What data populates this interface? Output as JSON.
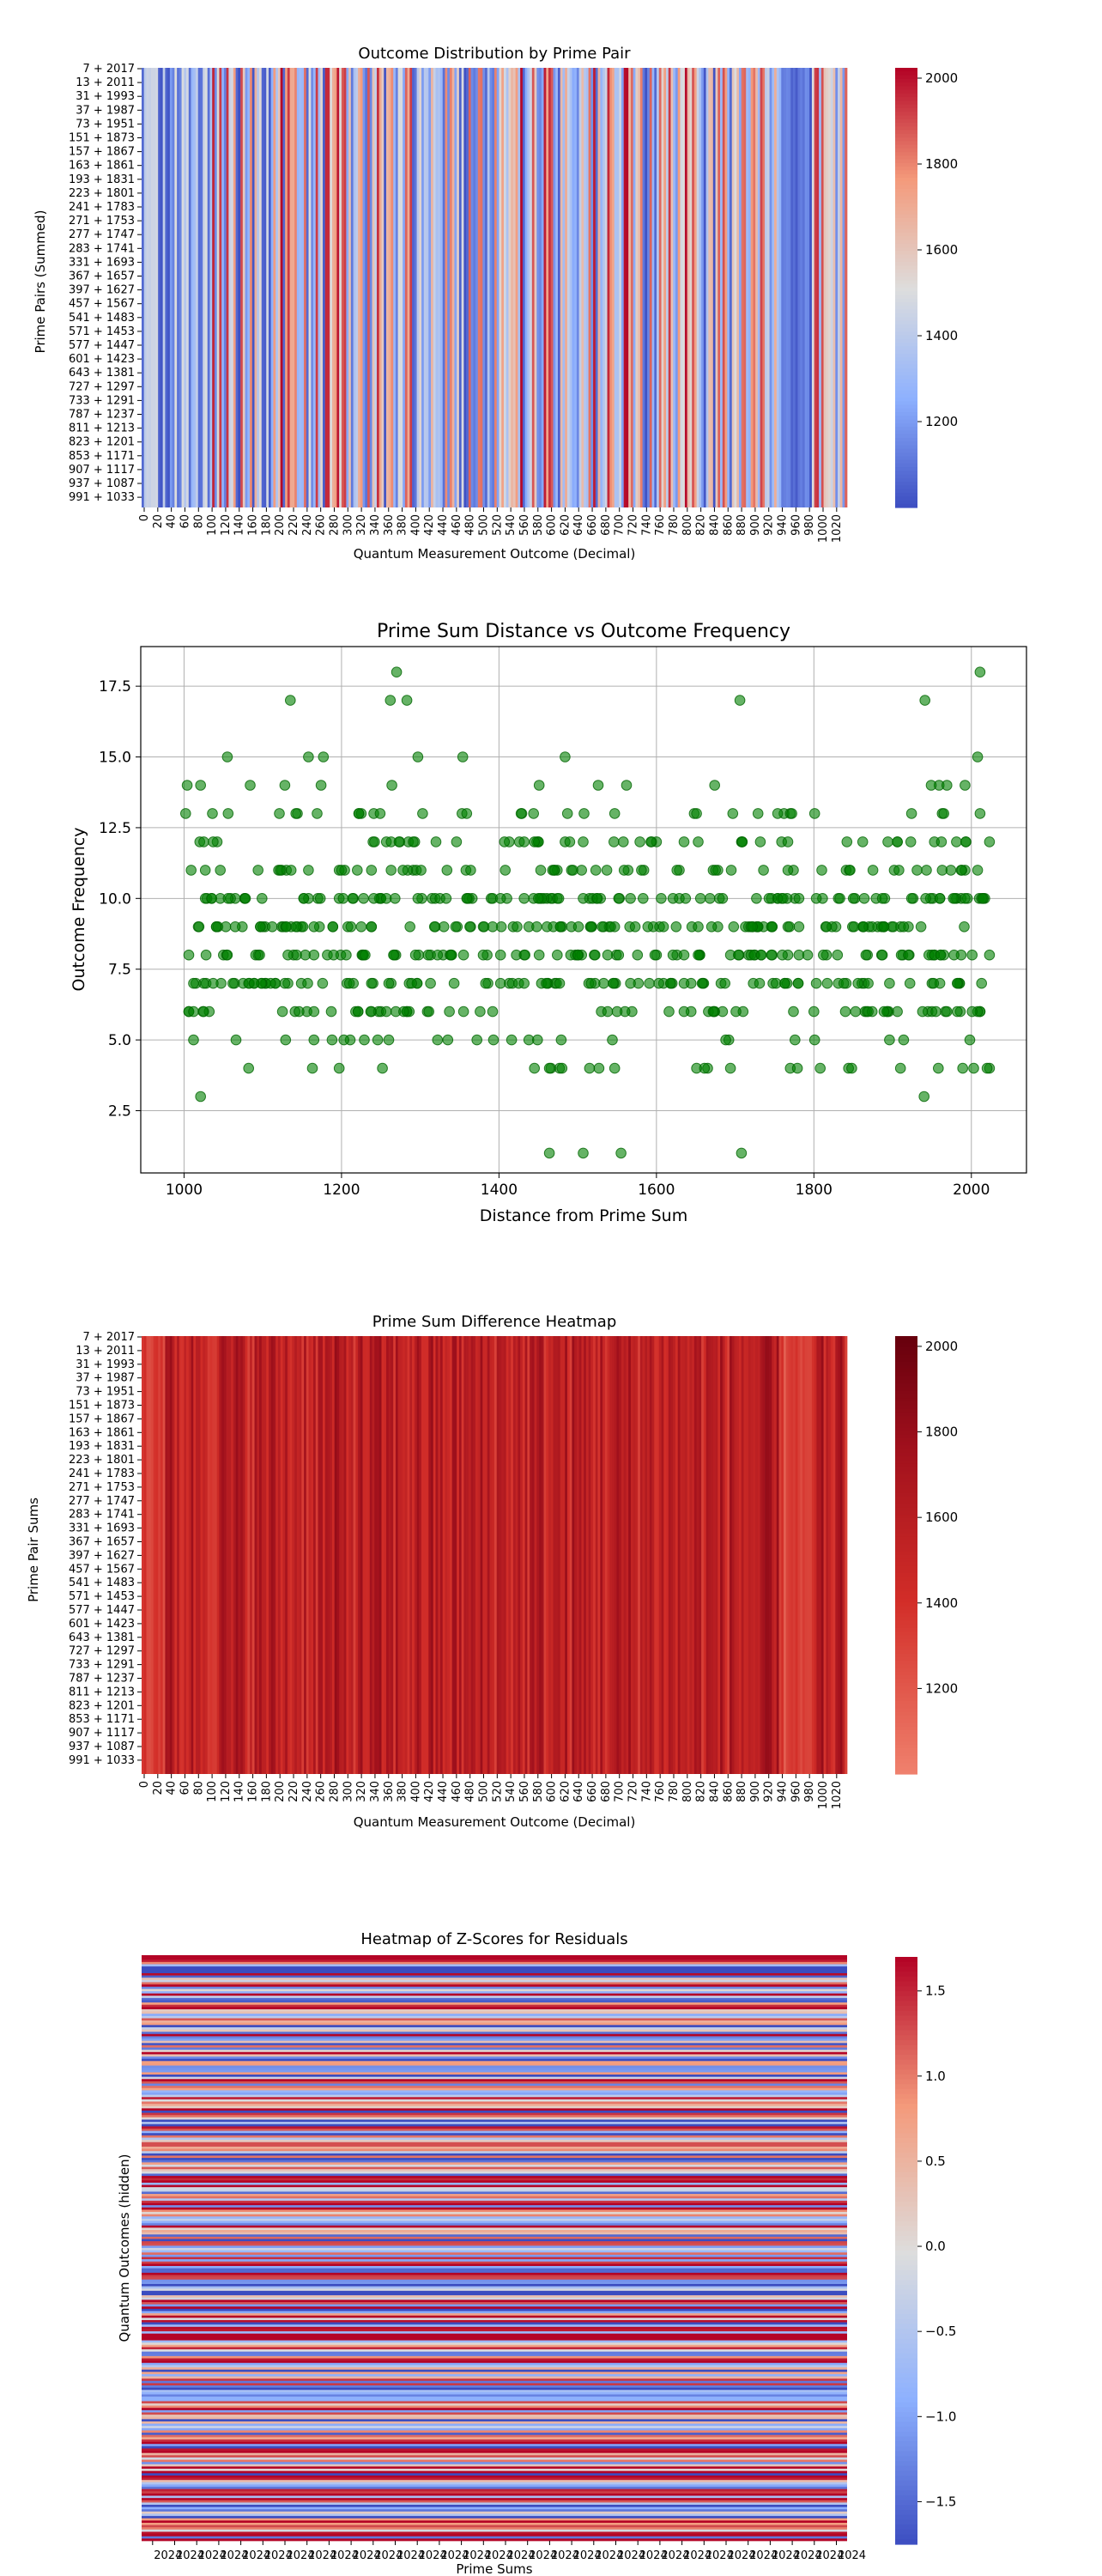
{
  "chart_data": [
    {
      "type": "heatmap",
      "title": "Outcome Distribution by Prime Pair",
      "xlabel": "Quantum Measurement Outcome (Decimal)",
      "ylabel": "Prime Pairs (Summed)",
      "x_tick_labels": [
        "0",
        "20",
        "40",
        "60",
        "80",
        "100",
        "120",
        "140",
        "160",
        "180",
        "200",
        "220",
        "240",
        "260",
        "280",
        "300",
        "320",
        "340",
        "360",
        "380",
        "400",
        "420",
        "440",
        "460",
        "480",
        "500",
        "520",
        "540",
        "560",
        "580",
        "600",
        "620",
        "640",
        "660",
        "680",
        "700",
        "720",
        "740",
        "760",
        "780",
        "800",
        "820",
        "840",
        "860",
        "880",
        "900",
        "920",
        "940",
        "960",
        "980",
        "1000",
        "1020"
      ],
      "y_tick_labels": [
        "7 + 2017",
        "13 + 2011",
        "31 + 1993",
        "37 + 1987",
        "73 + 1951",
        "151 + 1873",
        "157 + 1867",
        "163 + 1861",
        "193 + 1831",
        "223 + 1801",
        "241 + 1783",
        "271 + 1753",
        "277 + 1747",
        "283 + 1741",
        "331 + 1693",
        "367 + 1657",
        "397 + 1627",
        "457 + 1567",
        "541 + 1483",
        "571 + 1453",
        "577 + 1447",
        "601 + 1423",
        "643 + 1381",
        "727 + 1297",
        "733 + 1291",
        "787 + 1237",
        "811 + 1213",
        "823 + 1201",
        "853 + 1171",
        "907 + 1117",
        "937 + 1087",
        "991 + 1033"
      ],
      "colorbar": {
        "colormap": "coolwarm",
        "range": [
          1000,
          2024
        ],
        "ticks": [
          1200,
          1400,
          1600,
          1800,
          2000
        ]
      },
      "x_range": [
        0,
        1023
      ]
    },
    {
      "type": "scatter",
      "title": "Prime Sum Distance vs Outcome Frequency",
      "xlabel": "Distance from Prime Sum",
      "ylabel": "Outcome Frequency",
      "xlim": [
        945,
        2070
      ],
      "ylim": [
        0.3,
        18.9
      ],
      "x_ticks": [
        1000,
        1200,
        1400,
        1600,
        1800,
        2000
      ],
      "y_ticks": [
        2.5,
        5.0,
        7.5,
        10.0,
        12.5,
        15.0,
        17.5
      ],
      "grid": true,
      "marker_color": "#008000",
      "x_range_of_points": [
        1001,
        2024
      ],
      "notable_points": [
        [
          1270,
          18
        ],
        [
          2011,
          18
        ],
        [
          1135,
          17
        ],
        [
          1262,
          17
        ],
        [
          1283,
          17
        ],
        [
          1706,
          17
        ],
        [
          1941,
          17
        ],
        [
          1555,
          1
        ],
        [
          1507,
          1
        ],
        [
          1708,
          1
        ],
        [
          1464,
          1
        ]
      ]
    },
    {
      "type": "heatmap",
      "title": "Prime Sum Difference Heatmap",
      "xlabel": "Quantum Measurement Outcome (Decimal)",
      "ylabel": "Prime Pair Sums",
      "x_tick_labels": [
        "0",
        "20",
        "40",
        "60",
        "80",
        "100",
        "120",
        "140",
        "160",
        "180",
        "200",
        "220",
        "240",
        "260",
        "280",
        "300",
        "320",
        "340",
        "360",
        "380",
        "400",
        "420",
        "440",
        "460",
        "480",
        "500",
        "520",
        "540",
        "560",
        "580",
        "600",
        "620",
        "640",
        "660",
        "680",
        "700",
        "720",
        "740",
        "760",
        "780",
        "800",
        "820",
        "840",
        "860",
        "880",
        "900",
        "920",
        "940",
        "960",
        "980",
        "1000",
        "1020"
      ],
      "y_tick_labels": [
        "7 + 2017",
        "13 + 2011",
        "31 + 1993",
        "37 + 1987",
        "73 + 1951",
        "151 + 1873",
        "157 + 1867",
        "163 + 1861",
        "193 + 1831",
        "223 + 1801",
        "241 + 1783",
        "271 + 1753",
        "277 + 1747",
        "283 + 1741",
        "331 + 1693",
        "367 + 1657",
        "397 + 1627",
        "457 + 1567",
        "541 + 1483",
        "571 + 1453",
        "577 + 1447",
        "601 + 1423",
        "643 + 1381",
        "727 + 1297",
        "733 + 1291",
        "787 + 1237",
        "811 + 1213",
        "823 + 1201",
        "853 + 1171",
        "907 + 1117",
        "937 + 1087",
        "991 + 1033"
      ],
      "colorbar": {
        "colormap": "Reds",
        "range": [
          1000,
          2024
        ],
        "ticks": [
          1200,
          1400,
          1600,
          1800,
          2000
        ]
      },
      "x_range": [
        0,
        1023
      ]
    },
    {
      "type": "heatmap",
      "title": "Heatmap of Z-Scores for Residuals",
      "xlabel": "Prime Sums",
      "ylabel": "Quantum Outcomes (hidden)",
      "x_tick_labels": [
        "2024",
        "2024",
        "2024",
        "2024",
        "2024",
        "2024",
        "2024",
        "2024",
        "2024",
        "2024",
        "2024",
        "2024",
        "2024",
        "2024",
        "2024",
        "2024",
        "2024",
        "2024",
        "2024",
        "2024",
        "2024",
        "2024",
        "2024",
        "2024",
        "2024",
        "2024",
        "2024",
        "2024",
        "2024",
        "2024",
        "2024",
        "2024"
      ],
      "colorbar": {
        "colormap": "coolwarm",
        "range": [
          -1.75,
          1.7
        ],
        "ticks": [
          -1.5,
          -1.0,
          -0.5,
          0.0,
          0.5,
          1.0,
          1.5
        ],
        "tick_labels": [
          "−1.5",
          "−1.0",
          "−0.5",
          "0.0",
          "0.5",
          "1.0",
          "1.5"
        ]
      }
    }
  ]
}
